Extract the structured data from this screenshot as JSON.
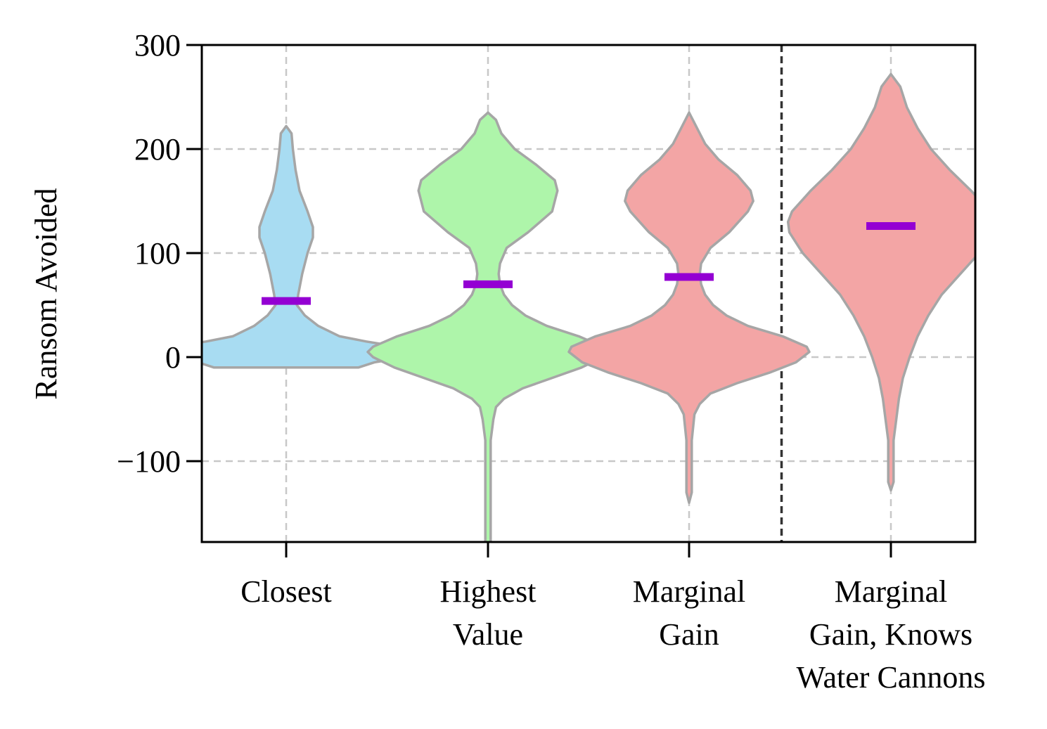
{
  "chart_data": {
    "type": "violin",
    "title": "",
    "xlabel": "",
    "ylabel": "Ransom Avoided",
    "ylim": [
      -180,
      300
    ],
    "yticks": [
      -100,
      0,
      100,
      200,
      300
    ],
    "ytick_labels": [
      "−100",
      "0",
      "100",
      "200",
      "300"
    ],
    "grid": true,
    "separator_after_category": 3,
    "categories": [
      {
        "label_lines": [
          "Closest"
        ],
        "color": "#a8dcf2",
        "mean": 54,
        "profile": [
          [
            -10,
            0.27
          ],
          [
            -5,
            0.33
          ],
          [
            0,
            0.45
          ],
          [
            5,
            0.5
          ],
          [
            10,
            0.42
          ],
          [
            15,
            0.3
          ],
          [
            20,
            0.2
          ],
          [
            30,
            0.12
          ],
          [
            40,
            0.07
          ],
          [
            50,
            0.04
          ],
          [
            60,
            0.045
          ],
          [
            80,
            0.06
          ],
          [
            100,
            0.08
          ],
          [
            115,
            0.1
          ],
          [
            125,
            0.1
          ],
          [
            140,
            0.08
          ],
          [
            160,
            0.05
          ],
          [
            180,
            0.035
          ],
          [
            200,
            0.025
          ],
          [
            215,
            0.02
          ],
          [
            222,
            0
          ]
        ]
      },
      {
        "label_lines": [
          "Highest",
          "Value"
        ],
        "color": "#aef5aa",
        "mean": 70,
        "profile": [
          [
            -180,
            0.01
          ],
          [
            -120,
            0.01
          ],
          [
            -80,
            0.01
          ],
          [
            -60,
            0.02
          ],
          [
            -48,
            0.03
          ],
          [
            -40,
            0.06
          ],
          [
            -30,
            0.13
          ],
          [
            -20,
            0.24
          ],
          [
            -10,
            0.35
          ],
          [
            0,
            0.43
          ],
          [
            5,
            0.45
          ],
          [
            10,
            0.43
          ],
          [
            20,
            0.34
          ],
          [
            30,
            0.22
          ],
          [
            40,
            0.14
          ],
          [
            50,
            0.09
          ],
          [
            60,
            0.06
          ],
          [
            70,
            0.045
          ],
          [
            80,
            0.04
          ],
          [
            90,
            0.045
          ],
          [
            105,
            0.07
          ],
          [
            120,
            0.15
          ],
          [
            140,
            0.24
          ],
          [
            150,
            0.25
          ],
          [
            160,
            0.26
          ],
          [
            170,
            0.25
          ],
          [
            185,
            0.18
          ],
          [
            200,
            0.1
          ],
          [
            215,
            0.05
          ],
          [
            228,
            0.03
          ],
          [
            235,
            0
          ]
        ]
      },
      {
        "label_lines": [
          "Marginal",
          "Gain"
        ],
        "color": "#f3a5a5",
        "mean": 77,
        "profile": [
          [
            -140,
            0
          ],
          [
            -130,
            0.01
          ],
          [
            -80,
            0.01
          ],
          [
            -55,
            0.02
          ],
          [
            -45,
            0.04
          ],
          [
            -35,
            0.08
          ],
          [
            -25,
            0.18
          ],
          [
            -15,
            0.3
          ],
          [
            -5,
            0.4
          ],
          [
            5,
            0.45
          ],
          [
            10,
            0.44
          ],
          [
            20,
            0.35
          ],
          [
            30,
            0.22
          ],
          [
            40,
            0.14
          ],
          [
            50,
            0.09
          ],
          [
            60,
            0.06
          ],
          [
            70,
            0.045
          ],
          [
            80,
            0.04
          ],
          [
            90,
            0.045
          ],
          [
            105,
            0.08
          ],
          [
            120,
            0.15
          ],
          [
            140,
            0.22
          ],
          [
            150,
            0.24
          ],
          [
            160,
            0.23
          ],
          [
            175,
            0.18
          ],
          [
            190,
            0.11
          ],
          [
            205,
            0.06
          ],
          [
            220,
            0.03
          ],
          [
            235,
            0
          ]
        ]
      },
      {
        "label_lines": [
          "Marginal",
          "Gain, Knows",
          "Water Cannons"
        ],
        "color": "#f3a5a5",
        "mean": 126,
        "profile": [
          [
            -128,
            0
          ],
          [
            -120,
            0.01
          ],
          [
            -80,
            0.01
          ],
          [
            -60,
            0.02
          ],
          [
            -40,
            0.03
          ],
          [
            -20,
            0.045
          ],
          [
            0,
            0.07
          ],
          [
            20,
            0.1
          ],
          [
            40,
            0.14
          ],
          [
            60,
            0.19
          ],
          [
            80,
            0.26
          ],
          [
            100,
            0.33
          ],
          [
            120,
            0.38
          ],
          [
            130,
            0.385
          ],
          [
            140,
            0.37
          ],
          [
            160,
            0.3
          ],
          [
            180,
            0.22
          ],
          [
            200,
            0.15
          ],
          [
            220,
            0.1
          ],
          [
            240,
            0.06
          ],
          [
            260,
            0.035
          ],
          [
            272,
            0
          ]
        ]
      }
    ]
  }
}
